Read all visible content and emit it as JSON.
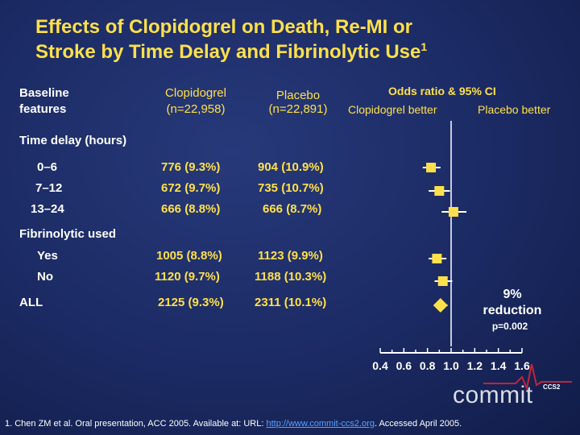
{
  "title": {
    "line1": "Effects of Clopidogrel on Death, Re-MI or",
    "line2": "Stroke by Time Delay and Fibrinolytic Use",
    "sup": "1"
  },
  "headers": {
    "baseline_line1": "Baseline",
    "baseline_line2": "features",
    "clopi_line1": "Clopidogrel",
    "clopi_line2": "(n=22,958)",
    "placebo_line1": "Placebo",
    "placebo_line2": "(n=22,891)",
    "or_line1": "Odds ratio & 95% CI",
    "or_left": "Clopidogrel better",
    "or_right": "Placebo better"
  },
  "sections": {
    "time_delay": "Time delay (hours)",
    "fibrinolytic": "Fibrinolytic used"
  },
  "rows": [
    {
      "label": "0–6",
      "clopi": "776 (9.3%)",
      "placebo": "904 (10.9%)"
    },
    {
      "label": "7–12",
      "clopi": "672 (9.7%)",
      "placebo": "735 (10.7%)"
    },
    {
      "label": "13–24",
      "clopi": "666 (8.8%)",
      "placebo": "666 (8.7%)"
    },
    {
      "label": "Yes",
      "clopi": "1005 (8.8%)",
      "placebo": "1123 (9.9%)"
    },
    {
      "label": "No",
      "clopi": "1120 (9.7%)",
      "placebo": "1188 (10.3%)"
    },
    {
      "label": "ALL",
      "clopi": "2125 (9.3%)",
      "placebo": "2311 (10.1%)"
    }
  ],
  "annotation": {
    "reduction": "9% reduction",
    "pvalue": "p=0.002"
  },
  "chart_data": {
    "type": "scatter",
    "title": "",
    "xlabel": "",
    "xlim": [
      0.4,
      1.6
    ],
    "x_ticks": [
      "0.4",
      "0.6",
      "0.8",
      "1.0",
      "1.2",
      "1.4",
      "1.6"
    ],
    "reference_line": 1.0,
    "points": [
      {
        "name": "0–6",
        "or": 0.83,
        "lo": 0.76,
        "hi": 0.91,
        "marker": "square"
      },
      {
        "name": "7–12",
        "or": 0.9,
        "lo": 0.81,
        "hi": 0.99,
        "marker": "square"
      },
      {
        "name": "13–24",
        "or": 1.02,
        "lo": 0.92,
        "hi": 1.13,
        "marker": "square"
      },
      {
        "name": "Yes",
        "or": 0.88,
        "lo": 0.81,
        "hi": 0.96,
        "marker": "square"
      },
      {
        "name": "No",
        "or": 0.93,
        "lo": 0.86,
        "hi": 1.01,
        "marker": "square"
      },
      {
        "name": "ALL",
        "or": 0.91,
        "lo": 0.86,
        "hi": 0.97,
        "marker": "diamond"
      }
    ],
    "colors": {
      "marker": "#ffe04a",
      "lines": "#ffffff"
    }
  },
  "logo": {
    "text": "commit",
    "sub": "CCS2"
  },
  "footnote": {
    "pre": "1. Chen ZM et al. Oral presentation, ACC 2005. Available at: URL: ",
    "link": "http://www.commit-ccs2.org",
    "post": ". Accessed April 2005."
  }
}
